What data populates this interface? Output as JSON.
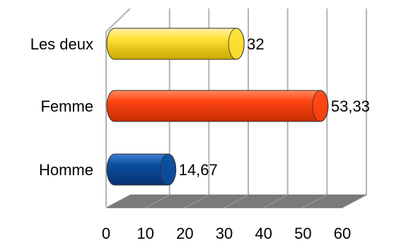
{
  "chart_data": {
    "type": "bar",
    "orientation": "horizontal",
    "style": "3d-cylinder",
    "categories": [
      "Les deux",
      "Femme",
      "Homme"
    ],
    "values": [
      32,
      53.33,
      14.67
    ],
    "value_labels": [
      "32",
      "53,33",
      "14,67"
    ],
    "colors": [
      "#FFE033",
      "#FF4512",
      "#0C4E9E"
    ],
    "xlim": [
      0,
      60
    ],
    "xticks": [
      "0",
      "10",
      "20",
      "30",
      "40",
      "50",
      "60"
    ],
    "grid": true,
    "legend": "none"
  }
}
